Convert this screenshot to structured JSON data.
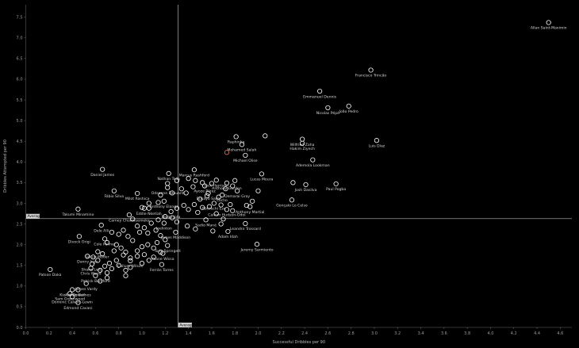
{
  "chart_data": {
    "type": "scatter",
    "title": "",
    "xlabel": "Successful Dribbles per 90",
    "ylabel": "Dribbles Attempted per 90",
    "xlim": [
      0,
      4.7
    ],
    "ylim": [
      0,
      7.8
    ],
    "xticks": [
      "0.0",
      "0.2",
      "0.4",
      "0.6",
      "0.8",
      "1.0",
      "1.2",
      "1.4",
      "1.6",
      "1.8",
      "2.0",
      "2.2",
      "2.4",
      "2.6",
      "2.8",
      "3.0",
      "3.2",
      "3.4",
      "3.6",
      "3.8",
      "4.0",
      "4.2",
      "4.4",
      "4.6"
    ],
    "yticks": [
      "0.0",
      "0.5",
      "1.0",
      "1.5",
      "2.0",
      "2.5",
      "3.0",
      "3.5",
      "4.0",
      "4.5",
      "5.0",
      "5.5",
      "6.0",
      "6.5",
      "7.0",
      "7.5"
    ],
    "average_x": 1.31,
    "average_y": 2.63,
    "average_label": "Average",
    "highlight_color": "#e07a5f",
    "point_color": "#ffffff",
    "labeled_points": [
      {
        "label": "Allan Saint-Maximin",
        "x": 4.5,
        "y": 7.37
      },
      {
        "label": "Francisco Trincão",
        "x": 2.97,
        "y": 6.22
      },
      {
        "label": "Emmanuel Dennis",
        "x": 2.53,
        "y": 5.71
      },
      {
        "label": "Nicolas Pépé",
        "x": 2.6,
        "y": 5.31
      },
      {
        "label": "João Pedro",
        "x": 2.78,
        "y": 5.35
      },
      {
        "label": "Raphinha",
        "x": 1.81,
        "y": 4.61
      },
      {
        "label": "Mohamed Salah",
        "x": 1.86,
        "y": 4.42
      },
      {
        "label": "Wilfried Zaha",
        "x": 2.38,
        "y": 4.55
      },
      {
        "label": "Hakim Ziyech",
        "x": 2.38,
        "y": 4.45
      },
      {
        "label": "Luis Díaz",
        "x": 3.02,
        "y": 4.52
      },
      {
        "label": "Michael Olise",
        "x": 1.89,
        "y": 4.16
      },
      {
        "label": "Ademola Lookman",
        "x": 2.47,
        "y": 4.05
      },
      {
        "label": "Daniel James",
        "x": 0.66,
        "y": 3.82
      },
      {
        "label": "Marcus Rashford",
        "x": 1.45,
        "y": 3.81
      },
      {
        "label": "Nathan Tella",
        "x": 1.23,
        "y": 3.72
      },
      {
        "label": "Lucas Moura",
        "x": 2.03,
        "y": 3.71
      },
      {
        "label": "Jack Harrison",
        "x": 1.64,
        "y": 3.56
      },
      {
        "label": "Anthony Gordon",
        "x": 1.73,
        "y": 3.49
      },
      {
        "label": "Ayoze Pérez",
        "x": 1.54,
        "y": 3.42
      },
      {
        "label": "Josh Dasilva",
        "x": 2.41,
        "y": 3.45
      },
      {
        "label": "Paul Pogba",
        "x": 2.67,
        "y": 3.47
      },
      {
        "label": "Odsonne Édouard",
        "x": 1.22,
        "y": 3.38
      },
      {
        "label": "Demarai Gray",
        "x": 1.82,
        "y": 3.3
      },
      {
        "label": "Fábio Silva",
        "x": 0.76,
        "y": 3.3
      },
      {
        "label": "Lucho",
        "x": 1.69,
        "y": 3.2
      },
      {
        "label": "Milot Rashica",
        "x": 0.96,
        "y": 3.24
      },
      {
        "label": "Bukayo Saka",
        "x": 1.57,
        "y": 3.24
      },
      {
        "label": "Gonçalo Lo Celso",
        "x": 2.29,
        "y": 3.08
      },
      {
        "label": "Anthony Elanga",
        "x": 1.19,
        "y": 3.05
      },
      {
        "label": "Eberechi Eze",
        "x": 1.62,
        "y": 3.0
      },
      {
        "label": "Anthony Martial",
        "x": 1.93,
        "y": 2.92
      },
      {
        "label": "Takumi Minamino",
        "x": 0.45,
        "y": 2.86
      },
      {
        "label": "Eddie Nketiah",
        "x": 1.06,
        "y": 2.88
      },
      {
        "label": "Callum Hudson-Odoi",
        "x": 1.73,
        "y": 2.85
      },
      {
        "label": "Diogo Jota",
        "x": 1.25,
        "y": 2.8
      },
      {
        "label": "Carney Chukwuemeka",
        "x": 0.89,
        "y": 2.72
      },
      {
        "label": "Sadio Mané",
        "x": 1.55,
        "y": 2.6
      },
      {
        "label": "Leandro Trossard",
        "x": 1.89,
        "y": 2.51
      },
      {
        "label": "Joelinton",
        "x": 1.19,
        "y": 2.52
      },
      {
        "label": "Dele Alli",
        "x": 0.65,
        "y": 2.47
      },
      {
        "label": "Adam Idah",
        "x": 1.74,
        "y": 2.32
      },
      {
        "label": "James Maddison",
        "x": 1.29,
        "y": 2.3
      },
      {
        "label": "Divock Origi",
        "x": 0.46,
        "y": 2.2
      },
      {
        "label": "Cole Palmer",
        "x": 0.68,
        "y": 2.14
      },
      {
        "label": "Jeremy Sarmiento",
        "x": 1.99,
        "y": 2.01
      },
      {
        "label": "Tony Springett",
        "x": 1.22,
        "y": 1.98
      },
      {
        "label": "Jakub Moder",
        "x": 0.62,
        "y": 1.83
      },
      {
        "label": "Yoane Wissa",
        "x": 1.18,
        "y": 1.79
      },
      {
        "label": "Danny Ings",
        "x": 0.53,
        "y": 1.72
      },
      {
        "label": "Callum Wilson",
        "x": 0.9,
        "y": 1.61
      },
      {
        "label": "Shane Long",
        "x": 0.57,
        "y": 1.53
      },
      {
        "label": "Ferrán Torres",
        "x": 1.17,
        "y": 1.52
      },
      {
        "label": "Chris Wood",
        "x": 0.56,
        "y": 1.43
      },
      {
        "label": "Patson Daka",
        "x": 0.21,
        "y": 1.4
      },
      {
        "label": "Patrick Bamford",
        "x": 0.6,
        "y": 1.25
      },
      {
        "label": "James Vardy",
        "x": 0.52,
        "y": 1.06
      },
      {
        "label": "Ashley Barnes",
        "x": 0.45,
        "y": 0.91
      },
      {
        "label": "Kieran Dowell",
        "x": 0.4,
        "y": 0.91
      },
      {
        "label": "Sam Greenwood",
        "x": 0.38,
        "y": 0.82
      },
      {
        "label": "Dominic Calvert-Lewin",
        "x": 0.4,
        "y": 0.74
      },
      {
        "label": "Edmond Cavani",
        "x": 0.45,
        "y": 0.6
      }
    ],
    "highlighted_points": [
      [
        1.73,
        4.23
      ]
    ],
    "other_points": [
      [
        2.06,
        4.63
      ],
      [
        2.0,
        3.3
      ],
      [
        1.66,
        3.15
      ],
      [
        1.72,
        3.35
      ],
      [
        1.78,
        3.42
      ],
      [
        1.8,
        3.55
      ],
      [
        1.46,
        3.55
      ],
      [
        1.38,
        3.25
      ],
      [
        1.5,
        3.1
      ],
      [
        1.56,
        3.18
      ],
      [
        1.45,
        2.97
      ],
      [
        1.36,
        2.95
      ],
      [
        1.3,
        2.88
      ],
      [
        1.4,
        2.85
      ],
      [
        1.48,
        2.78
      ],
      [
        1.52,
        2.9
      ],
      [
        1.58,
        2.92
      ],
      [
        1.64,
        2.75
      ],
      [
        1.68,
        2.96
      ],
      [
        1.76,
        2.97
      ],
      [
        1.78,
        2.82
      ],
      [
        1.68,
        2.5
      ],
      [
        1.61,
        2.33
      ],
      [
        1.46,
        2.38
      ],
      [
        1.39,
        2.45
      ],
      [
        1.3,
        2.55
      ],
      [
        1.26,
        2.65
      ],
      [
        1.2,
        2.68
      ],
      [
        1.14,
        2.6
      ],
      [
        1.08,
        2.52
      ],
      [
        1.02,
        2.41
      ],
      [
        0.98,
        2.3
      ],
      [
        1.05,
        2.28
      ],
      [
        1.12,
        2.35
      ],
      [
        1.16,
        2.22
      ],
      [
        1.2,
        2.12
      ],
      [
        1.13,
        2.05
      ],
      [
        1.05,
        2.0
      ],
      [
        1.0,
        1.95
      ],
      [
        0.96,
        1.85
      ],
      [
        0.92,
        2.1
      ],
      [
        0.88,
        2.2
      ],
      [
        0.84,
        2.35
      ],
      [
        0.8,
        2.25
      ],
      [
        0.74,
        2.3
      ],
      [
        0.7,
        2.05
      ],
      [
        0.78,
        2.0
      ],
      [
        0.82,
        1.92
      ],
      [
        0.86,
        1.82
      ],
      [
        0.84,
        1.75
      ],
      [
        0.9,
        1.68
      ],
      [
        0.96,
        1.72
      ],
      [
        1.02,
        1.76
      ],
      [
        1.06,
        1.62
      ],
      [
        1.1,
        1.7
      ],
      [
        0.78,
        1.62
      ],
      [
        0.72,
        1.55
      ],
      [
        0.68,
        1.48
      ],
      [
        0.64,
        1.38
      ],
      [
        0.7,
        1.32
      ],
      [
        0.74,
        1.42
      ],
      [
        0.8,
        1.5
      ],
      [
        0.86,
        1.38
      ],
      [
        0.86,
        1.25
      ],
      [
        0.62,
        1.62
      ],
      [
        0.58,
        1.7
      ],
      [
        0.64,
        1.12
      ],
      [
        0.7,
        1.2
      ],
      [
        1.0,
        1.55
      ],
      [
        0.96,
        2.45
      ],
      [
        0.92,
        2.62
      ],
      [
        1.0,
        2.9
      ],
      [
        1.02,
        2.88
      ],
      [
        1.06,
        3.0
      ],
      [
        1.14,
        3.02
      ],
      [
        1.16,
        3.2
      ],
      [
        1.22,
        3.48
      ],
      [
        1.3,
        3.55
      ],
      [
        1.34,
        3.35
      ],
      [
        1.26,
        3.25
      ],
      [
        1.4,
        3.6
      ],
      [
        1.44,
        3.4
      ],
      [
        1.52,
        3.5
      ],
      [
        1.6,
        3.48
      ],
      [
        2.3,
        3.5
      ],
      [
        1.9,
        2.95
      ],
      [
        1.95,
        3.05
      ],
      [
        1.7,
        2.62
      ],
      [
        1.1,
        1.92
      ],
      [
        1.16,
        1.82
      ],
      [
        0.9,
        1.45
      ],
      [
        0.76,
        1.85
      ],
      [
        0.66,
        1.78
      ]
    ]
  }
}
